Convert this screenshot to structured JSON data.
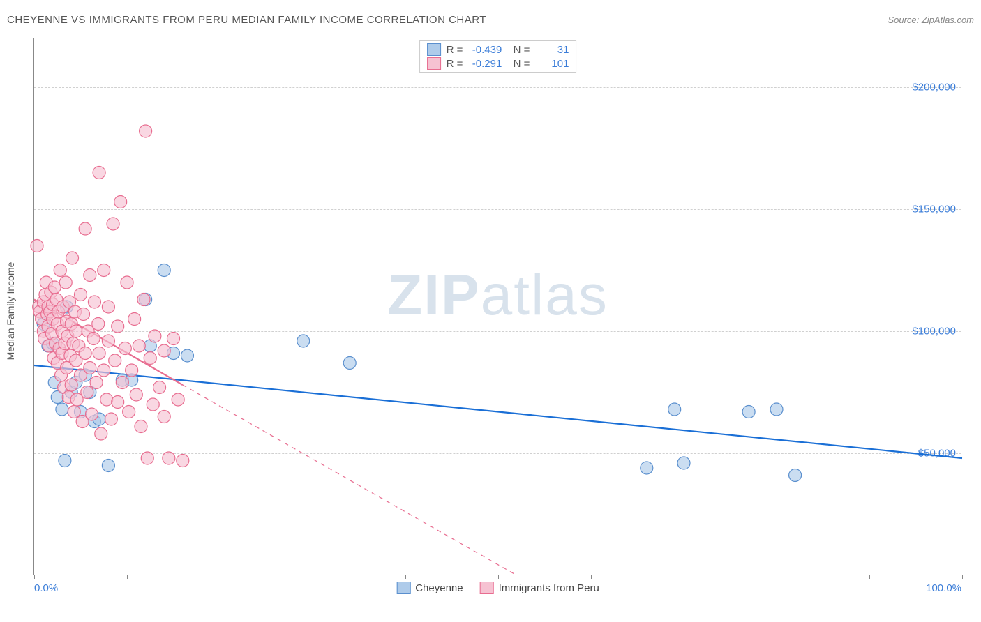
{
  "title": "CHEYENNE VS IMMIGRANTS FROM PERU MEDIAN FAMILY INCOME CORRELATION CHART",
  "source": "Source: ZipAtlas.com",
  "watermark": "ZIPatlas",
  "chart": {
    "type": "scatter",
    "yaxis_title": "Median Family Income",
    "background_color": "#ffffff",
    "grid_color": "#d0d0d0",
    "axis_color": "#888888",
    "tick_label_color": "#3b7dd8",
    "marker_radius": 9,
    "marker_stroke_width": 1.2,
    "trend_line_width": 2.2,
    "xlim": [
      0,
      100
    ],
    "ylim": [
      0,
      220000
    ],
    "x_ticks": [
      0,
      10,
      20,
      30,
      40,
      50,
      60,
      70,
      80,
      90,
      100
    ],
    "x_labels": [
      {
        "v": 0,
        "t": "0.0%",
        "align": "left"
      },
      {
        "v": 100,
        "t": "100.0%",
        "align": "right"
      }
    ],
    "y_gridlines": [
      {
        "v": 50000,
        "t": "$50,000"
      },
      {
        "v": 100000,
        "t": "$100,000"
      },
      {
        "v": 150000,
        "t": "$150,000"
      },
      {
        "v": 200000,
        "t": "$200,000"
      }
    ],
    "series": [
      {
        "key": "cheyenne",
        "name": "Cheyenne",
        "fill": "#aecbea",
        "stroke": "#5a8fce",
        "line_color": "#1a6fd6",
        "R": "-0.439",
        "N": "31",
        "trend": {
          "x1": 0,
          "y1": 86000,
          "x2": 100,
          "y2": 48000,
          "dash": false
        },
        "points": [
          [
            1.0,
            103000
          ],
          [
            1.5,
            94000
          ],
          [
            2.0,
            95000
          ],
          [
            2.2,
            79000
          ],
          [
            2.5,
            73000
          ],
          [
            3.0,
            68000
          ],
          [
            3.3,
            47000
          ],
          [
            3.5,
            110000
          ],
          [
            4.0,
            75000
          ],
          [
            4.5,
            79000
          ],
          [
            5.0,
            67000
          ],
          [
            5.5,
            82000
          ],
          [
            6.0,
            75000
          ],
          [
            6.5,
            63000
          ],
          [
            7.0,
            64000
          ],
          [
            8.0,
            45000
          ],
          [
            9.5,
            80000
          ],
          [
            10.5,
            80000
          ],
          [
            12.0,
            113000
          ],
          [
            12.5,
            94000
          ],
          [
            14.0,
            125000
          ],
          [
            15.0,
            91000
          ],
          [
            16.5,
            90000
          ],
          [
            29.0,
            96000
          ],
          [
            34.0,
            87000
          ],
          [
            66.0,
            44000
          ],
          [
            69.0,
            68000
          ],
          [
            70.0,
            46000
          ],
          [
            77.0,
            67000
          ],
          [
            80.0,
            68000
          ],
          [
            82.0,
            41000
          ]
        ]
      },
      {
        "key": "peru",
        "name": "Immigrants from Peru",
        "fill": "#f6c2d2",
        "stroke": "#e86d90",
        "line_color": "#e86d90",
        "R": "-0.291",
        "N": "101",
        "trend": {
          "x1": 0,
          "y1": 113000,
          "x2": 16,
          "y2": 78000,
          "dash": false
        },
        "trend_ext": {
          "x1": 16,
          "y1": 78000,
          "x2": 52,
          "y2": 0,
          "dash": true
        },
        "points": [
          [
            0.3,
            135000
          ],
          [
            0.5,
            110000
          ],
          [
            0.6,
            108000
          ],
          [
            0.8,
            105000
          ],
          [
            1.0,
            112000
          ],
          [
            1.0,
            100000
          ],
          [
            1.1,
            97000
          ],
          [
            1.2,
            115000
          ],
          [
            1.3,
            120000
          ],
          [
            1.4,
            107000
          ],
          [
            1.5,
            110000
          ],
          [
            1.5,
            102000
          ],
          [
            1.6,
            94000
          ],
          [
            1.7,
            108000
          ],
          [
            1.8,
            116000
          ],
          [
            1.9,
            99000
          ],
          [
            2.0,
            111000
          ],
          [
            2.0,
            105000
          ],
          [
            2.1,
            89000
          ],
          [
            2.2,
            118000
          ],
          [
            2.3,
            95000
          ],
          [
            2.4,
            113000
          ],
          [
            2.5,
            103000
          ],
          [
            2.5,
            87000
          ],
          [
            2.6,
            108000
          ],
          [
            2.7,
            93000
          ],
          [
            2.8,
            125000
          ],
          [
            2.9,
            82000
          ],
          [
            3.0,
            100000
          ],
          [
            3.0,
            91000
          ],
          [
            3.1,
            110000
          ],
          [
            3.2,
            77000
          ],
          [
            3.3,
            95000
          ],
          [
            3.4,
            120000
          ],
          [
            3.5,
            104000
          ],
          [
            3.5,
            85000
          ],
          [
            3.6,
            98000
          ],
          [
            3.7,
            73000
          ],
          [
            3.8,
            112000
          ],
          [
            3.9,
            90000
          ],
          [
            4.0,
            103000
          ],
          [
            4.0,
            78000
          ],
          [
            4.1,
            130000
          ],
          [
            4.2,
            95000
          ],
          [
            4.3,
            67000
          ],
          [
            4.4,
            108000
          ],
          [
            4.5,
            88000
          ],
          [
            4.5,
            100000
          ],
          [
            4.6,
            72000
          ],
          [
            4.8,
            94000
          ],
          [
            5.0,
            115000
          ],
          [
            5.0,
            82000
          ],
          [
            5.2,
            63000
          ],
          [
            5.3,
            107000
          ],
          [
            5.5,
            91000
          ],
          [
            5.5,
            142000
          ],
          [
            5.7,
            75000
          ],
          [
            5.8,
            100000
          ],
          [
            6.0,
            123000
          ],
          [
            6.0,
            85000
          ],
          [
            6.2,
            66000
          ],
          [
            6.4,
            97000
          ],
          [
            6.5,
            112000
          ],
          [
            6.7,
            79000
          ],
          [
            6.9,
            103000
          ],
          [
            7.0,
            165000
          ],
          [
            7.0,
            91000
          ],
          [
            7.2,
            58000
          ],
          [
            7.5,
            125000
          ],
          [
            7.5,
            84000
          ],
          [
            7.8,
            72000
          ],
          [
            8.0,
            96000
          ],
          [
            8.0,
            110000
          ],
          [
            8.3,
            64000
          ],
          [
            8.5,
            144000
          ],
          [
            8.7,
            88000
          ],
          [
            9.0,
            102000
          ],
          [
            9.0,
            71000
          ],
          [
            9.3,
            153000
          ],
          [
            9.5,
            79000
          ],
          [
            9.8,
            93000
          ],
          [
            10.0,
            120000
          ],
          [
            10.2,
            67000
          ],
          [
            10.5,
            84000
          ],
          [
            10.8,
            105000
          ],
          [
            11.0,
            74000
          ],
          [
            11.3,
            94000
          ],
          [
            11.5,
            61000
          ],
          [
            11.8,
            113000
          ],
          [
            12.0,
            182000
          ],
          [
            12.2,
            48000
          ],
          [
            12.5,
            89000
          ],
          [
            12.8,
            70000
          ],
          [
            13.0,
            98000
          ],
          [
            13.5,
            77000
          ],
          [
            14.0,
            65000
          ],
          [
            14.0,
            92000
          ],
          [
            14.5,
            48000
          ],
          [
            15.0,
            97000
          ],
          [
            15.5,
            72000
          ],
          [
            16.0,
            47000
          ]
        ]
      }
    ]
  }
}
